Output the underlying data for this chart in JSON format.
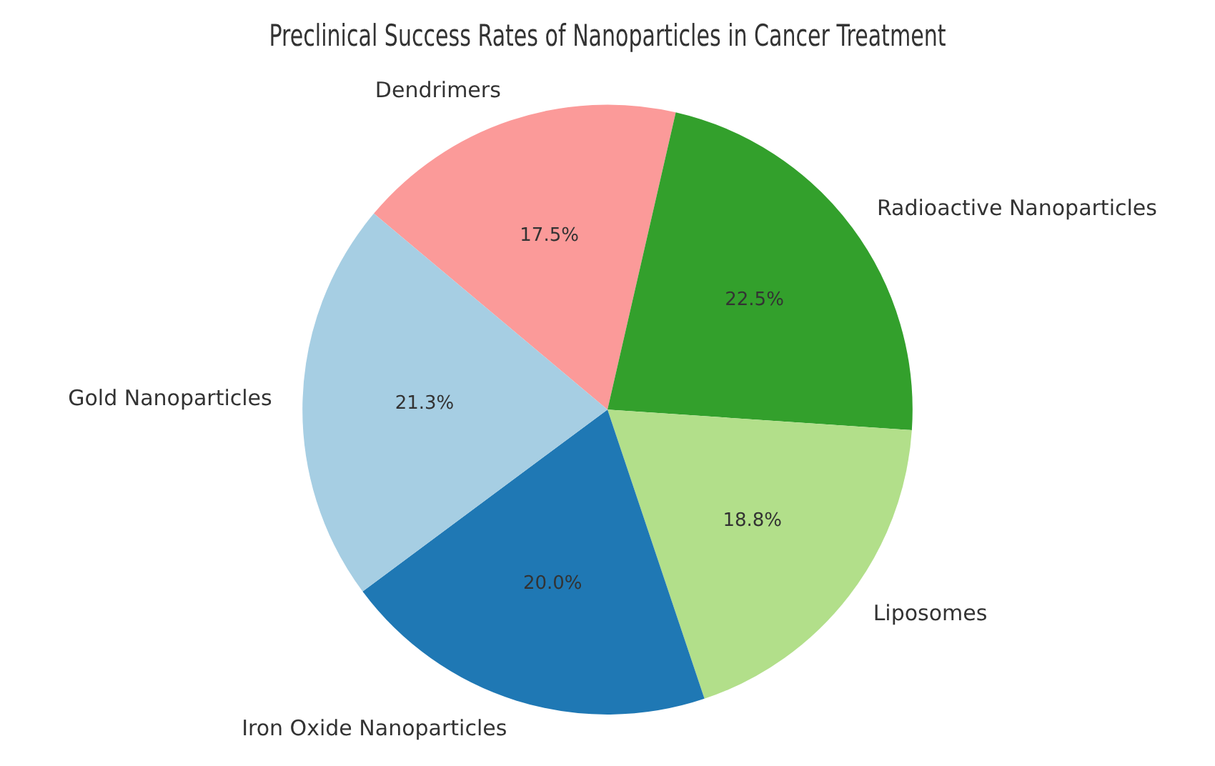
{
  "chart_data": {
    "type": "pie",
    "title": "Preclinical Success Rates of Nanoparticles in Cancer Treatment",
    "categories": [
      "Dendrimers",
      "Radioactive Nanoparticles",
      "Liposomes",
      "Iron Oxide Nanoparticles",
      "Gold Nanoparticles"
    ],
    "values": [
      17.5,
      22.5,
      18.8,
      20.0,
      21.3
    ],
    "value_labels": [
      "17.5%",
      "22.5%",
      "18.8%",
      "20.0%",
      "21.3%"
    ],
    "colors": [
      "#fb9a99",
      "#33a02c",
      "#b2df8a",
      "#1f78b4",
      "#a6cee3"
    ],
    "legend": false
  }
}
